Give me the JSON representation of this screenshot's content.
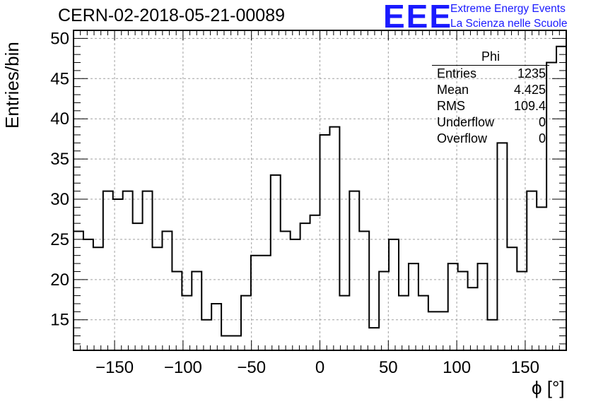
{
  "chart_data": {
    "type": "histogram",
    "title": "CERN-02-2018-05-21-00089",
    "xlabel": "ϕ [°]",
    "ylabel": "Entries/bin",
    "xlim": [
      -180,
      180
    ],
    "ylim": [
      11.2,
      51.0
    ],
    "grid": true,
    "bin_width": 7.2,
    "bin_values": [
      26,
      25,
      24,
      31,
      30,
      31,
      27,
      31,
      24,
      26,
      21,
      18,
      21,
      15,
      17,
      13,
      13,
      18,
      23,
      23,
      33,
      26,
      25,
      27,
      28,
      38,
      39,
      18,
      31,
      26,
      14,
      21,
      25,
      18,
      22,
      18,
      16,
      16,
      22,
      21,
      19,
      22,
      15,
      37,
      24,
      21,
      31,
      29,
      47,
      49
    ],
    "x_ticks": [
      -150,
      -100,
      -50,
      0,
      50,
      100,
      150
    ],
    "x_tick_labels": [
      "−150",
      "−100",
      "−50",
      "0",
      "50",
      "100",
      "150"
    ],
    "y_ticks": [
      15,
      20,
      25,
      30,
      35,
      40,
      45,
      50
    ],
    "y_tick_labels": [
      "15",
      "20",
      "25",
      "30",
      "35",
      "40",
      "45",
      "50"
    ]
  },
  "logo": {
    "mark": "EEE",
    "line1": "Extreme Energy Events",
    "line2": "La Scienza nelle Scuole"
  },
  "stats": {
    "name": "Phi",
    "rows": [
      {
        "label": "Entries",
        "value": "1235"
      },
      {
        "label": "Mean",
        "value": "4.425"
      },
      {
        "label": "RMS",
        "value": "109.4"
      },
      {
        "label": "Underflow",
        "value": "0"
      },
      {
        "label": "Overflow",
        "value": "0"
      }
    ]
  },
  "colors": {
    "logo": "#1a1aff",
    "grid": "#a0a0a0",
    "line": "#000000"
  }
}
